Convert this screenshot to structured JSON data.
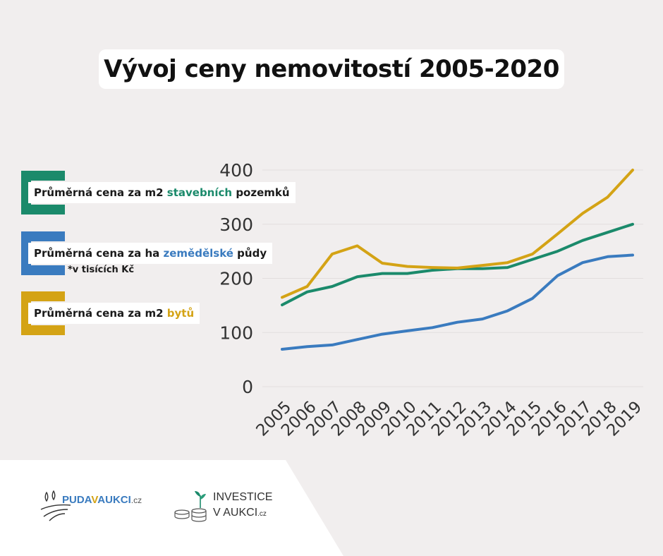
{
  "title": "Vývoj ceny nemovitostí 2005-2020",
  "legend": [
    {
      "prefix": "Průměrná cena za m2 ",
      "highlight": "stavebních",
      "suffix": " pozemků",
      "color": "#1b8a6b"
    },
    {
      "prefix": "Průměrná cena za ha ",
      "highlight": "zemědělské",
      "suffix": " půdy",
      "color": "#3a7bbf"
    },
    {
      "prefix": "Průměrná cena za m2 ",
      "highlight": "bytů",
      "suffix": "",
      "color": "#d4a315"
    }
  ],
  "note": "*v tisících Kč",
  "logos": {
    "puda": {
      "part1": "PUDA",
      "part2": "V",
      "part3": "AUKCI",
      "tld": ".cz"
    },
    "investice": {
      "line1": "INVESTICE",
      "line2": "V AUKCI",
      "tld": ".cz"
    }
  },
  "colors": {
    "green": "#1b8a6b",
    "blue": "#3a7bbf",
    "gold": "#d4a315",
    "background": "#f1eeee"
  },
  "chart_data": {
    "type": "line",
    "x": [
      "2005",
      "2006",
      "2007",
      "2008",
      "2009",
      "2010",
      "2011",
      "2012",
      "2013",
      "2014",
      "2015",
      "2016",
      "2017",
      "2018",
      "2019"
    ],
    "ylim": [
      0,
      400
    ],
    "yticks": [
      0,
      100,
      200,
      300,
      400
    ],
    "grid": true,
    "series": [
      {
        "key": "stavebni",
        "values": [
          151,
          175,
          185,
          203,
          209,
          209,
          215,
          218,
          218,
          220,
          235,
          250,
          270,
          285,
          300
        ]
      },
      {
        "key": "zemedelska",
        "values": [
          69,
          74,
          77,
          87,
          97,
          103,
          109,
          119,
          125,
          140,
          163,
          205,
          229,
          240,
          243
        ]
      },
      {
        "key": "byty",
        "values": [
          165,
          185,
          245,
          260,
          228,
          222,
          220,
          219,
          224,
          229,
          245,
          282,
          320,
          350,
          400
        ]
      }
    ]
  }
}
